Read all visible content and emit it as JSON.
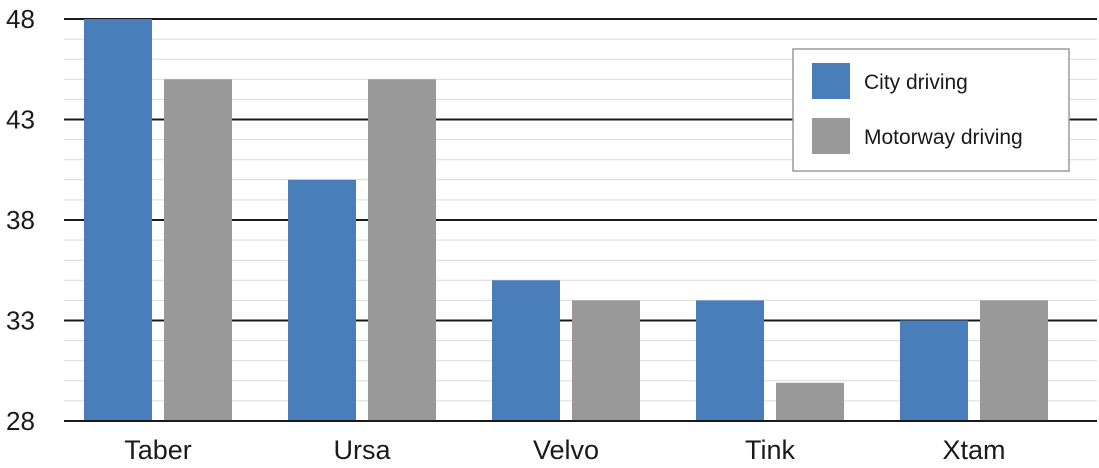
{
  "chart_data": {
    "type": "bar",
    "title": "",
    "xlabel": "",
    "ylabel": "",
    "categories": [
      "Taber",
      "Ursa",
      "Velvo",
      "Tink",
      "Xtam"
    ],
    "series": [
      {
        "name": "City driving",
        "values": [
          48,
          40,
          35,
          34,
          33
        ],
        "color": "#4a7ebb"
      },
      {
        "name": "Motorway driving",
        "values": [
          45,
          45,
          34,
          29.9,
          34
        ],
        "color": "#999999"
      }
    ],
    "ylim": [
      28,
      48
    ],
    "yticks": [
      28,
      33,
      38,
      43,
      48
    ],
    "major_grid": true,
    "minor_grid": true,
    "legend_position": "top-right"
  }
}
